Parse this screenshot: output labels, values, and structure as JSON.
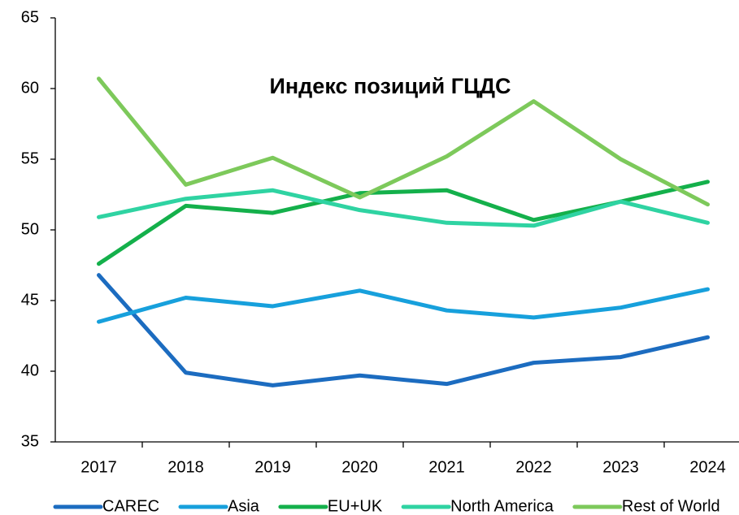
{
  "chart_data": {
    "type": "line",
    "title": "Индекс позиций ГЦДС",
    "categories": [
      "2017",
      "2018",
      "2019",
      "2020",
      "2021",
      "2022",
      "2023",
      "2024"
    ],
    "series": [
      {
        "name": "CAREC",
        "color": "#1c6cc0",
        "values": [
          46.8,
          39.9,
          39.0,
          39.7,
          39.1,
          40.6,
          41.0,
          42.4
        ]
      },
      {
        "name": "Asia",
        "color": "#17a0dc",
        "values": [
          43.5,
          45.2,
          44.6,
          45.7,
          44.3,
          43.8,
          44.5,
          45.8
        ]
      },
      {
        "name": "EU+UK",
        "color": "#14b04b",
        "values": [
          47.6,
          51.7,
          51.2,
          52.6,
          52.8,
          50.7,
          52.0,
          53.4
        ]
      },
      {
        "name": "North America",
        "color": "#2fd3a2",
        "values": [
          50.9,
          52.2,
          52.8,
          51.4,
          50.5,
          50.3,
          52.0,
          50.5
        ]
      },
      {
        "name": "Rest of World",
        "color": "#7dc95b",
        "values": [
          60.7,
          53.2,
          55.1,
          52.3,
          55.2,
          59.1,
          55.0,
          51.8
        ]
      }
    ],
    "ylim": [
      35,
      65
    ],
    "yticks": [
      35,
      40,
      45,
      50,
      55,
      60,
      65
    ],
    "grid": false,
    "legend": "bottom"
  }
}
